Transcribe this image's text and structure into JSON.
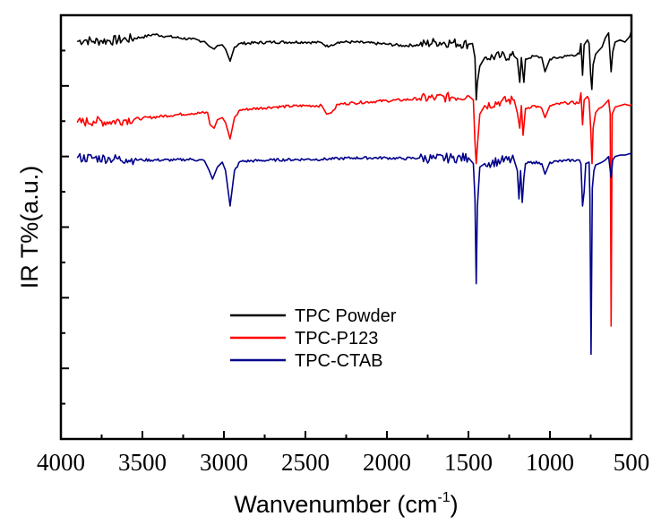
{
  "chart_data": {
    "type": "line",
    "title": "",
    "xlabel": "Wanvenumber (cm",
    "xlabel_superscript": "-1",
    "xlabel_suffix": ")",
    "ylabel": "IR T%(a.u.)",
    "xlim": [
      4000,
      500
    ],
    "x_reversed": true,
    "ylim": [
      0,
      6
    ],
    "y_tick_labels_shown": false,
    "grid": false,
    "legend_position": "center",
    "x_ticks": [
      4000,
      3500,
      3000,
      2500,
      2000,
      1500,
      1000,
      500
    ],
    "x_tick_labels": [
      "4000",
      "3500",
      "3000",
      "2500",
      "2000",
      "1500",
      "1000",
      "500"
    ],
    "series": [
      {
        "name": "TPC Powder",
        "color": "#000000",
        "points": [
          [
            3900,
            5.63
          ],
          [
            3850,
            5.65
          ],
          [
            3800,
            5.63
          ],
          [
            3750,
            5.64
          ],
          [
            3700,
            5.64
          ],
          [
            3600,
            5.66
          ],
          [
            3500,
            5.69
          ],
          [
            3430,
            5.73
          ],
          [
            3350,
            5.7
          ],
          [
            3200,
            5.66
          ],
          [
            3120,
            5.63
          ],
          [
            3090,
            5.56
          ],
          [
            3060,
            5.52
          ],
          [
            3040,
            5.57
          ],
          [
            3010,
            5.58
          ],
          [
            2990,
            5.52
          ],
          [
            2962,
            5.35
          ],
          [
            2935,
            5.55
          ],
          [
            2900,
            5.6
          ],
          [
            2700,
            5.62
          ],
          [
            2500,
            5.62
          ],
          [
            2400,
            5.61
          ],
          [
            2360,
            5.55
          ],
          [
            2340,
            5.58
          ],
          [
            2300,
            5.62
          ],
          [
            2200,
            5.62
          ],
          [
            2000,
            5.59
          ],
          [
            1900,
            5.57
          ],
          [
            1800,
            5.58
          ],
          [
            1700,
            5.62
          ],
          [
            1600,
            5.61
          ],
          [
            1500,
            5.59
          ],
          [
            1475,
            5.6
          ],
          [
            1460,
            5.4
          ],
          [
            1452,
            4.8
          ],
          [
            1445,
            5.05
          ],
          [
            1430,
            5.28
          ],
          [
            1400,
            5.4
          ],
          [
            1300,
            5.42
          ],
          [
            1220,
            5.42
          ],
          [
            1200,
            5.38
          ],
          [
            1185,
            5.05
          ],
          [
            1175,
            5.4
          ],
          [
            1160,
            5.05
          ],
          [
            1150,
            5.38
          ],
          [
            1100,
            5.42
          ],
          [
            1050,
            5.4
          ],
          [
            1030,
            5.2
          ],
          [
            1000,
            5.38
          ],
          [
            900,
            5.42
          ],
          [
            820,
            5.45
          ],
          [
            810,
            5.6
          ],
          [
            800,
            5.15
          ],
          [
            790,
            5.58
          ],
          [
            770,
            5.65
          ],
          [
            760,
            5.6
          ],
          [
            750,
            5.15
          ],
          [
            743,
            4.95
          ],
          [
            735,
            5.3
          ],
          [
            720,
            5.45
          ],
          [
            700,
            5.5
          ],
          [
            680,
            5.55
          ],
          [
            660,
            5.68
          ],
          [
            640,
            5.75
          ],
          [
            625,
            5.2
          ],
          [
            615,
            5.48
          ],
          [
            600,
            5.62
          ],
          [
            570,
            5.65
          ],
          [
            540,
            5.62
          ],
          [
            510,
            5.7
          ],
          [
            500,
            5.78
          ]
        ]
      },
      {
        "name": "TPC-P123",
        "color": "#ff0000",
        "points": [
          [
            3900,
            4.48
          ],
          [
            3800,
            4.5
          ],
          [
            3700,
            4.49
          ],
          [
            3600,
            4.52
          ],
          [
            3500,
            4.54
          ],
          [
            3300,
            4.59
          ],
          [
            3200,
            4.61
          ],
          [
            3100,
            4.62
          ],
          [
            3085,
            4.45
          ],
          [
            3060,
            4.4
          ],
          [
            3040,
            4.52
          ],
          [
            3010,
            4.55
          ],
          [
            2990,
            4.48
          ],
          [
            2962,
            4.25
          ],
          [
            2935,
            4.55
          ],
          [
            2900,
            4.66
          ],
          [
            2700,
            4.7
          ],
          [
            2500,
            4.72
          ],
          [
            2400,
            4.72
          ],
          [
            2370,
            4.6
          ],
          [
            2340,
            4.62
          ],
          [
            2300,
            4.74
          ],
          [
            2200,
            4.76
          ],
          [
            2000,
            4.79
          ],
          [
            1900,
            4.8
          ],
          [
            1800,
            4.82
          ],
          [
            1700,
            4.83
          ],
          [
            1600,
            4.84
          ],
          [
            1500,
            4.86
          ],
          [
            1470,
            4.8
          ],
          [
            1460,
            4.2
          ],
          [
            1452,
            3.9
          ],
          [
            1445,
            4.15
          ],
          [
            1430,
            4.6
          ],
          [
            1400,
            4.72
          ],
          [
            1300,
            4.78
          ],
          [
            1220,
            4.8
          ],
          [
            1200,
            4.62
          ],
          [
            1185,
            4.4
          ],
          [
            1175,
            4.72
          ],
          [
            1165,
            4.3
          ],
          [
            1150,
            4.68
          ],
          [
            1100,
            4.72
          ],
          [
            1050,
            4.68
          ],
          [
            1030,
            4.55
          ],
          [
            1000,
            4.72
          ],
          [
            900,
            4.76
          ],
          [
            820,
            4.76
          ],
          [
            810,
            4.9
          ],
          [
            800,
            4.45
          ],
          [
            790,
            4.8
          ],
          [
            770,
            4.85
          ],
          [
            760,
            4.8
          ],
          [
            750,
            4.4
          ],
          [
            742,
            3.9
          ],
          [
            735,
            4.4
          ],
          [
            720,
            4.62
          ],
          [
            700,
            4.68
          ],
          [
            680,
            4.7
          ],
          [
            660,
            4.75
          ],
          [
            640,
            4.8
          ],
          [
            630,
            4.6
          ],
          [
            625,
            1.6
          ],
          [
            618,
            4.6
          ],
          [
            600,
            4.7
          ],
          [
            570,
            4.72
          ],
          [
            540,
            4.74
          ],
          [
            510,
            4.72
          ],
          [
            500,
            4.74
          ]
        ]
      },
      {
        "name": "TPC-CTAB",
        "color": "#00008b",
        "points": [
          [
            3900,
            3.98
          ],
          [
            3800,
            3.98
          ],
          [
            3700,
            3.97
          ],
          [
            3600,
            3.96
          ],
          [
            3500,
            3.95
          ],
          [
            3300,
            3.95
          ],
          [
            3200,
            3.96
          ],
          [
            3120,
            3.94
          ],
          [
            3090,
            3.8
          ],
          [
            3070,
            3.68
          ],
          [
            3040,
            3.85
          ],
          [
            3010,
            3.92
          ],
          [
            2990,
            3.8
          ],
          [
            2962,
            3.3
          ],
          [
            2935,
            3.8
          ],
          [
            2900,
            3.93
          ],
          [
            2700,
            3.95
          ],
          [
            2500,
            3.96
          ],
          [
            2400,
            3.96
          ],
          [
            2300,
            3.97
          ],
          [
            2200,
            3.98
          ],
          [
            2000,
            3.98
          ],
          [
            1900,
            3.97
          ],
          [
            1800,
            3.98
          ],
          [
            1700,
            3.97
          ],
          [
            1600,
            3.98
          ],
          [
            1500,
            3.98
          ],
          [
            1470,
            3.9
          ],
          [
            1460,
            3.4
          ],
          [
            1452,
            2.2
          ],
          [
            1445,
            3.3
          ],
          [
            1430,
            3.85
          ],
          [
            1400,
            3.9
          ],
          [
            1300,
            3.94
          ],
          [
            1220,
            3.95
          ],
          [
            1200,
            3.8
          ],
          [
            1190,
            3.4
          ],
          [
            1180,
            3.8
          ],
          [
            1170,
            3.35
          ],
          [
            1160,
            3.7
          ],
          [
            1150,
            3.9
          ],
          [
            1100,
            3.92
          ],
          [
            1050,
            3.9
          ],
          [
            1030,
            3.75
          ],
          [
            1000,
            3.92
          ],
          [
            900,
            3.94
          ],
          [
            820,
            3.95
          ],
          [
            810,
            3.9
          ],
          [
            800,
            3.3
          ],
          [
            790,
            3.5
          ],
          [
            780,
            3.9
          ],
          [
            760,
            3.92
          ],
          [
            755,
            3.45
          ],
          [
            748,
            1.2
          ],
          [
            740,
            3.55
          ],
          [
            730,
            3.8
          ],
          [
            720,
            3.88
          ],
          [
            700,
            3.9
          ],
          [
            680,
            3.92
          ],
          [
            660,
            3.95
          ],
          [
            640,
            4.0
          ],
          [
            625,
            3.7
          ],
          [
            615,
            3.95
          ],
          [
            600,
            4.0
          ],
          [
            570,
            4.02
          ],
          [
            540,
            4.02
          ],
          [
            510,
            4.04
          ],
          [
            500,
            4.05
          ]
        ]
      }
    ]
  }
}
